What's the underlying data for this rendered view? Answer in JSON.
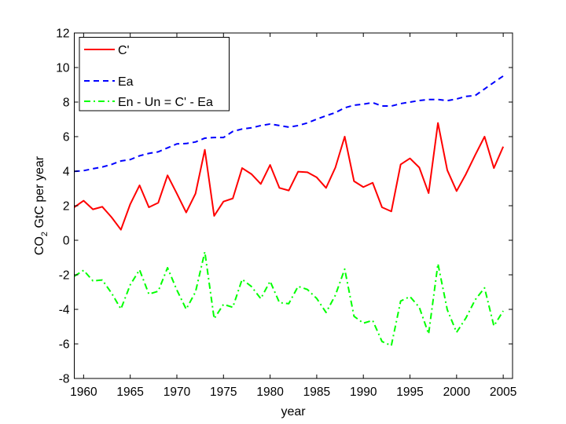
{
  "chart_data": {
    "type": "line",
    "title": "",
    "xlabel": "year",
    "ylabel_main": "CO",
    "ylabel_sub": "2",
    "ylabel_rest": " GtC per year",
    "xlim": [
      1959,
      2006
    ],
    "ylim": [
      -8,
      12
    ],
    "xticks": [
      1960,
      1965,
      1970,
      1975,
      1980,
      1985,
      1990,
      1995,
      2000,
      2005
    ],
    "yticks": [
      -8,
      -6,
      -4,
      -2,
      0,
      2,
      4,
      6,
      8,
      10,
      12
    ],
    "xtick_labels": [
      "1960",
      "1965",
      "1970",
      "1975",
      "1980",
      "1985",
      "1990",
      "1995",
      "2000",
      "2005"
    ],
    "ytick_labels": [
      "-8",
      "-6",
      "-4",
      "-2",
      "0",
      "2",
      "4",
      "6",
      "8",
      "10",
      "12"
    ],
    "grid": false,
    "legend_position": "top-left",
    "x": [
      1959,
      1960,
      1961,
      1962,
      1963,
      1964,
      1965,
      1966,
      1967,
      1968,
      1969,
      1970,
      1971,
      1972,
      1973,
      1974,
      1975,
      1976,
      1977,
      1978,
      1979,
      1980,
      1981,
      1982,
      1983,
      1984,
      1985,
      1986,
      1987,
      1988,
      1989,
      1990,
      1991,
      1992,
      1993,
      1994,
      1995,
      1996,
      1997,
      1998,
      1999,
      2000,
      2001,
      2002,
      2003,
      2004,
      2005
    ],
    "series": [
      {
        "name": "C'",
        "color": "#ff0000",
        "style": "solid",
        "values": [
          1.91,
          2.29,
          1.79,
          1.94,
          1.33,
          0.61,
          2.09,
          3.18,
          1.91,
          2.17,
          3.76,
          2.7,
          1.61,
          2.7,
          5.24,
          1.41,
          2.24,
          2.42,
          4.18,
          3.83,
          3.26,
          4.36,
          3.03,
          2.88,
          3.97,
          3.94,
          3.64,
          3.03,
          4.21,
          6.0,
          3.42,
          3.08,
          3.33,
          1.91,
          1.67,
          4.39,
          4.74,
          4.21,
          2.73,
          6.79,
          4.06,
          2.85,
          3.83,
          4.94,
          6.0,
          4.18,
          5.42
        ]
      },
      {
        "name": "Ea",
        "color": "#0000ff",
        "style": "dashed",
        "values": [
          3.99,
          4.03,
          4.14,
          4.24,
          4.39,
          4.59,
          4.67,
          4.89,
          5.03,
          5.12,
          5.35,
          5.58,
          5.6,
          5.69,
          5.91,
          5.95,
          5.95,
          6.3,
          6.44,
          6.51,
          6.64,
          6.73,
          6.64,
          6.55,
          6.64,
          6.79,
          7.01,
          7.21,
          7.39,
          7.67,
          7.82,
          7.88,
          7.97,
          7.77,
          7.77,
          7.91,
          8.0,
          8.09,
          8.15,
          8.15,
          8.08,
          8.18,
          8.33,
          8.38,
          8.76,
          9.14,
          9.51
        ]
      },
      {
        "name": "En - Un = C' - Ea",
        "color": "#00ff00",
        "style": "dashdot",
        "values": [
          -2.08,
          -1.74,
          -2.35,
          -2.3,
          -3.06,
          -3.98,
          -2.58,
          -1.71,
          -3.12,
          -2.95,
          -1.59,
          -2.88,
          -3.99,
          -2.99,
          -0.67,
          -4.54,
          -3.71,
          -3.88,
          -2.26,
          -2.68,
          -3.38,
          -2.37,
          -3.61,
          -3.67,
          -2.67,
          -2.85,
          -3.37,
          -4.18,
          -3.18,
          -1.67,
          -4.4,
          -4.8,
          -4.64,
          -5.86,
          -6.1,
          -3.52,
          -3.26,
          -3.88,
          -5.42,
          -1.36,
          -4.02,
          -5.33,
          -4.5,
          -3.44,
          -2.76,
          -4.96,
          -4.09
        ]
      }
    ]
  }
}
